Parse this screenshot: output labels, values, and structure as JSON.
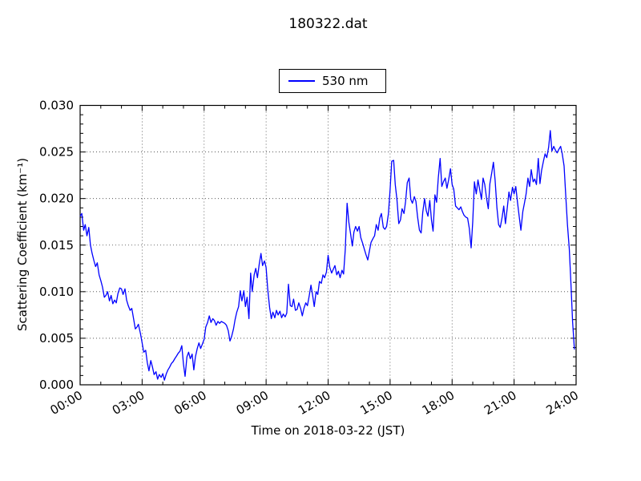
{
  "figure": {
    "background": "#ffffff",
    "frame_color": "#000000",
    "grid_color": "#000000"
  },
  "chart_data": {
    "type": "line",
    "title": "180322.dat",
    "xlabel": "Time on 2018-03-22 (JST)",
    "ylabel": "Scattering Coefficient (km⁻¹)",
    "xlim_hours": [
      0,
      24
    ],
    "ylim": [
      0.0,
      0.03
    ],
    "x_major_ticks_hours": [
      0,
      3,
      6,
      9,
      12,
      15,
      18,
      21,
      24
    ],
    "x_tick_labels": [
      "00:00",
      "03:00",
      "06:00",
      "09:00",
      "12:00",
      "15:00",
      "18:00",
      "21:00",
      "24:00"
    ],
    "x_minor_step_hours": 1,
    "x_tick_rotation_deg": 30,
    "y_major_ticks": [
      0.0,
      0.005,
      0.01,
      0.015,
      0.02,
      0.025,
      0.03
    ],
    "y_tick_labels": [
      "0.000",
      "0.005",
      "0.010",
      "0.015",
      "0.020",
      "0.025",
      "0.030"
    ],
    "y_minor_step": 0.001,
    "grid": "dotted-at-major-ticks",
    "legend": {
      "position": "above-plot-center",
      "entries": [
        {
          "label": "530 nm",
          "color": "#0000ff"
        }
      ]
    },
    "series": [
      {
        "name": "530 nm",
        "color": "#0000ff",
        "points_hours_value": [
          [
            0.0,
            0.0181
          ],
          [
            0.08,
            0.0184
          ],
          [
            0.17,
            0.0166
          ],
          [
            0.25,
            0.0172
          ],
          [
            0.33,
            0.016
          ],
          [
            0.42,
            0.0169
          ],
          [
            0.5,
            0.015
          ],
          [
            0.58,
            0.0141
          ],
          [
            0.67,
            0.0133
          ],
          [
            0.75,
            0.0127
          ],
          [
            0.83,
            0.0131
          ],
          [
            0.92,
            0.0118
          ],
          [
            1.0,
            0.0112
          ],
          [
            1.08,
            0.0105
          ],
          [
            1.17,
            0.0094
          ],
          [
            1.25,
            0.0096
          ],
          [
            1.33,
            0.01
          ],
          [
            1.42,
            0.009
          ],
          [
            1.5,
            0.0096
          ],
          [
            1.58,
            0.0087
          ],
          [
            1.67,
            0.0091
          ],
          [
            1.75,
            0.0088
          ],
          [
            1.83,
            0.0098
          ],
          [
            1.92,
            0.0104
          ],
          [
            2.0,
            0.0103
          ],
          [
            2.08,
            0.0097
          ],
          [
            2.17,
            0.0103
          ],
          [
            2.25,
            0.0091
          ],
          [
            2.33,
            0.0085
          ],
          [
            2.42,
            0.008
          ],
          [
            2.5,
            0.0082
          ],
          [
            2.58,
            0.0072
          ],
          [
            2.67,
            0.006
          ],
          [
            2.75,
            0.0062
          ],
          [
            2.82,
            0.0065
          ],
          [
            2.92,
            0.0055
          ],
          [
            3.0,
            0.0045
          ],
          [
            3.08,
            0.0035
          ],
          [
            3.17,
            0.0037
          ],
          [
            3.25,
            0.0024
          ],
          [
            3.33,
            0.0015
          ],
          [
            3.42,
            0.0026
          ],
          [
            3.5,
            0.0019
          ],
          [
            3.58,
            0.0011
          ],
          [
            3.67,
            0.0014
          ],
          [
            3.75,
            0.0006
          ],
          [
            3.83,
            0.0011
          ],
          [
            3.92,
            0.0008
          ],
          [
            4.0,
            0.0012
          ],
          [
            4.08,
            0.0005
          ],
          [
            4.17,
            0.0012
          ],
          [
            4.25,
            0.0016
          ],
          [
            4.33,
            0.0019
          ],
          [
            4.42,
            0.0023
          ],
          [
            4.5,
            0.0025
          ],
          [
            4.58,
            0.0028
          ],
          [
            4.67,
            0.0031
          ],
          [
            4.75,
            0.0034
          ],
          [
            4.83,
            0.0036
          ],
          [
            4.92,
            0.0042
          ],
          [
            5.0,
            0.0022
          ],
          [
            5.08,
            0.0009
          ],
          [
            5.17,
            0.003
          ],
          [
            5.25,
            0.0035
          ],
          [
            5.33,
            0.0028
          ],
          [
            5.42,
            0.0033
          ],
          [
            5.5,
            0.0016
          ],
          [
            5.58,
            0.003
          ],
          [
            5.67,
            0.0039
          ],
          [
            5.75,
            0.0045
          ],
          [
            5.83,
            0.0039
          ],
          [
            5.92,
            0.0044
          ],
          [
            6.0,
            0.0049
          ],
          [
            6.08,
            0.0062
          ],
          [
            6.17,
            0.0067
          ],
          [
            6.25,
            0.0074
          ],
          [
            6.33,
            0.0067
          ],
          [
            6.42,
            0.0071
          ],
          [
            6.5,
            0.0069
          ],
          [
            6.58,
            0.0064
          ],
          [
            6.67,
            0.0068
          ],
          [
            6.75,
            0.0066
          ],
          [
            6.83,
            0.0068
          ],
          [
            6.92,
            0.0067
          ],
          [
            7.0,
            0.0066
          ],
          [
            7.08,
            0.0064
          ],
          [
            7.17,
            0.0058
          ],
          [
            7.25,
            0.0047
          ],
          [
            7.33,
            0.0052
          ],
          [
            7.42,
            0.006
          ],
          [
            7.5,
            0.007
          ],
          [
            7.58,
            0.0078
          ],
          [
            7.67,
            0.0084
          ],
          [
            7.75,
            0.0101
          ],
          [
            7.83,
            0.009
          ],
          [
            7.92,
            0.0101
          ],
          [
            8.0,
            0.0084
          ],
          [
            8.08,
            0.0094
          ],
          [
            8.17,
            0.0071
          ],
          [
            8.25,
            0.012
          ],
          [
            8.33,
            0.01
          ],
          [
            8.42,
            0.0118
          ],
          [
            8.5,
            0.0125
          ],
          [
            8.58,
            0.0115
          ],
          [
            8.67,
            0.013
          ],
          [
            8.75,
            0.0141
          ],
          [
            8.83,
            0.0128
          ],
          [
            8.92,
            0.0133
          ],
          [
            9.0,
            0.0126
          ],
          [
            9.08,
            0.0102
          ],
          [
            9.17,
            0.0083
          ],
          [
            9.25,
            0.0071
          ],
          [
            9.33,
            0.0078
          ],
          [
            9.42,
            0.0072
          ],
          [
            9.5,
            0.008
          ],
          [
            9.58,
            0.0075
          ],
          [
            9.67,
            0.0079
          ],
          [
            9.75,
            0.0072
          ],
          [
            9.83,
            0.0076
          ],
          [
            9.92,
            0.0073
          ],
          [
            10.0,
            0.0077
          ],
          [
            10.08,
            0.0108
          ],
          [
            10.17,
            0.0085
          ],
          [
            10.25,
            0.0084
          ],
          [
            10.33,
            0.0092
          ],
          [
            10.42,
            0.008
          ],
          [
            10.5,
            0.0081
          ],
          [
            10.58,
            0.0088
          ],
          [
            10.67,
            0.0082
          ],
          [
            10.75,
            0.0074
          ],
          [
            10.83,
            0.0082
          ],
          [
            10.92,
            0.0088
          ],
          [
            11.0,
            0.0085
          ],
          [
            11.08,
            0.0095
          ],
          [
            11.17,
            0.0107
          ],
          [
            11.25,
            0.0096
          ],
          [
            11.33,
            0.0084
          ],
          [
            11.42,
            0.01
          ],
          [
            11.5,
            0.0097
          ],
          [
            11.58,
            0.0111
          ],
          [
            11.67,
            0.0109
          ],
          [
            11.75,
            0.0118
          ],
          [
            11.83,
            0.0115
          ],
          [
            11.92,
            0.0121
          ],
          [
            12.0,
            0.0139
          ],
          [
            12.08,
            0.0126
          ],
          [
            12.17,
            0.012
          ],
          [
            12.25,
            0.0124
          ],
          [
            12.33,
            0.0128
          ],
          [
            12.42,
            0.0118
          ],
          [
            12.5,
            0.0122
          ],
          [
            12.58,
            0.0115
          ],
          [
            12.67,
            0.0123
          ],
          [
            12.75,
            0.0119
          ],
          [
            12.83,
            0.0145
          ],
          [
            12.92,
            0.0195
          ],
          [
            13.0,
            0.0175
          ],
          [
            13.08,
            0.0163
          ],
          [
            13.17,
            0.0149
          ],
          [
            13.25,
            0.0164
          ],
          [
            13.33,
            0.017
          ],
          [
            13.42,
            0.0165
          ],
          [
            13.5,
            0.017
          ],
          [
            13.58,
            0.0158
          ],
          [
            13.67,
            0.0152
          ],
          [
            13.75,
            0.0146
          ],
          [
            13.83,
            0.014
          ],
          [
            13.92,
            0.0134
          ],
          [
            14.0,
            0.0144
          ],
          [
            14.08,
            0.0153
          ],
          [
            14.17,
            0.0157
          ],
          [
            14.25,
            0.016
          ],
          [
            14.33,
            0.0172
          ],
          [
            14.42,
            0.0166
          ],
          [
            14.5,
            0.0179
          ],
          [
            14.58,
            0.0184
          ],
          [
            14.67,
            0.0169
          ],
          [
            14.75,
            0.0167
          ],
          [
            14.83,
            0.017
          ],
          [
            14.92,
            0.0184
          ],
          [
            15.0,
            0.021
          ],
          [
            15.08,
            0.024
          ],
          [
            15.17,
            0.0241
          ],
          [
            15.25,
            0.0215
          ],
          [
            15.33,
            0.0199
          ],
          [
            15.42,
            0.0173
          ],
          [
            15.5,
            0.0177
          ],
          [
            15.58,
            0.0189
          ],
          [
            15.67,
            0.0184
          ],
          [
            15.75,
            0.0197
          ],
          [
            15.83,
            0.0217
          ],
          [
            15.92,
            0.0222
          ],
          [
            16.0,
            0.0199
          ],
          [
            16.08,
            0.0195
          ],
          [
            16.17,
            0.0202
          ],
          [
            16.25,
            0.0197
          ],
          [
            16.33,
            0.018
          ],
          [
            16.42,
            0.0166
          ],
          [
            16.5,
            0.0163
          ],
          [
            16.58,
            0.0185
          ],
          [
            16.67,
            0.02
          ],
          [
            16.75,
            0.0187
          ],
          [
            16.83,
            0.0181
          ],
          [
            16.92,
            0.0198
          ],
          [
            17.0,
            0.0177
          ],
          [
            17.08,
            0.0165
          ],
          [
            17.17,
            0.0204
          ],
          [
            17.25,
            0.0196
          ],
          [
            17.33,
            0.0222
          ],
          [
            17.42,
            0.0243
          ],
          [
            17.5,
            0.0213
          ],
          [
            17.58,
            0.0218
          ],
          [
            17.67,
            0.0222
          ],
          [
            17.75,
            0.0211
          ],
          [
            17.83,
            0.022
          ],
          [
            17.92,
            0.0232
          ],
          [
            18.0,
            0.0215
          ],
          [
            18.08,
            0.021
          ],
          [
            18.17,
            0.0192
          ],
          [
            18.25,
            0.019
          ],
          [
            18.33,
            0.0188
          ],
          [
            18.42,
            0.0191
          ],
          [
            18.5,
            0.0186
          ],
          [
            18.58,
            0.0182
          ],
          [
            18.67,
            0.018
          ],
          [
            18.75,
            0.0179
          ],
          [
            18.83,
            0.0168
          ],
          [
            18.92,
            0.0147
          ],
          [
            19.0,
            0.0175
          ],
          [
            19.08,
            0.0218
          ],
          [
            19.17,
            0.0205
          ],
          [
            19.25,
            0.022
          ],
          [
            19.33,
            0.021
          ],
          [
            19.42,
            0.0199
          ],
          [
            19.5,
            0.0222
          ],
          [
            19.58,
            0.0215
          ],
          [
            19.67,
            0.02
          ],
          [
            19.75,
            0.0189
          ],
          [
            19.83,
            0.0216
          ],
          [
            19.92,
            0.0228
          ],
          [
            20.0,
            0.0239
          ],
          [
            20.08,
            0.022
          ],
          [
            20.17,
            0.019
          ],
          [
            20.25,
            0.0172
          ],
          [
            20.33,
            0.0169
          ],
          [
            20.42,
            0.018
          ],
          [
            20.5,
            0.0192
          ],
          [
            20.58,
            0.0173
          ],
          [
            20.67,
            0.019
          ],
          [
            20.75,
            0.0207
          ],
          [
            20.83,
            0.0198
          ],
          [
            20.92,
            0.0212
          ],
          [
            21.0,
            0.0205
          ],
          [
            21.08,
            0.0213
          ],
          [
            21.17,
            0.0195
          ],
          [
            21.25,
            0.018
          ],
          [
            21.33,
            0.0166
          ],
          [
            21.42,
            0.0186
          ],
          [
            21.5,
            0.0195
          ],
          [
            21.58,
            0.0205
          ],
          [
            21.67,
            0.0222
          ],
          [
            21.75,
            0.0213
          ],
          [
            21.83,
            0.0231
          ],
          [
            21.92,
            0.0218
          ],
          [
            22.0,
            0.0221
          ],
          [
            22.08,
            0.0215
          ],
          [
            22.17,
            0.0243
          ],
          [
            22.25,
            0.0216
          ],
          [
            22.33,
            0.023
          ],
          [
            22.42,
            0.024
          ],
          [
            22.5,
            0.0248
          ],
          [
            22.58,
            0.0244
          ],
          [
            22.67,
            0.0255
          ],
          [
            22.75,
            0.0273
          ],
          [
            22.83,
            0.0251
          ],
          [
            22.92,
            0.0256
          ],
          [
            23.0,
            0.0252
          ],
          [
            23.08,
            0.0249
          ],
          [
            23.17,
            0.0253
          ],
          [
            23.25,
            0.0256
          ],
          [
            23.33,
            0.0248
          ],
          [
            23.42,
            0.0235
          ],
          [
            23.5,
            0.0203
          ],
          [
            23.58,
            0.0172
          ],
          [
            23.67,
            0.0146
          ],
          [
            23.75,
            0.0108
          ],
          [
            23.83,
            0.0068
          ],
          [
            23.92,
            0.0038
          ]
        ]
      }
    ]
  }
}
